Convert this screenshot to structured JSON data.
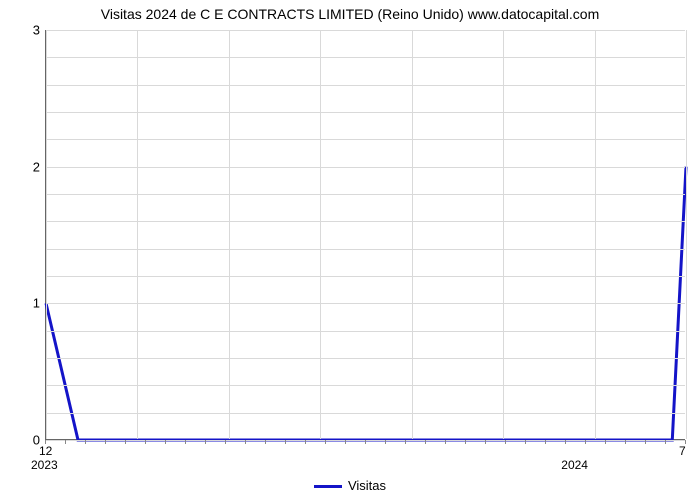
{
  "title": "Visitas 2024 de C E CONTRACTS LIMITED (Reino Unido) www.datocapital.com",
  "chart": {
    "type": "line",
    "background_color": "#ffffff",
    "grid_color": "#d9d9d9",
    "axis_color": "#666666",
    "line_color": "#1414c8",
    "line_width": 3,
    "title_fontsize": 14,
    "tick_fontsize": 13,
    "ylim": [
      0,
      3
    ],
    "y_ticks": [
      0,
      1,
      2,
      3
    ],
    "y_minor_per_major": 5,
    "x_count": 8,
    "x_major_month_labels": [
      {
        "index": 0,
        "label": "12"
      },
      {
        "index": 7,
        "label": "7"
      }
    ],
    "x_year_labels": [
      {
        "index": 0,
        "label": "2023"
      },
      {
        "index": 5.8,
        "label": "2024"
      }
    ],
    "x_minor_tick_count": 32,
    "series": {
      "name": "Visitas",
      "points": [
        {
          "x": 0,
          "y": 1
        },
        {
          "x": 0.35,
          "y": 0
        },
        {
          "x": 6.85,
          "y": 0
        },
        {
          "x": 7,
          "y": 2
        }
      ]
    }
  },
  "legend_label": "Visitas"
}
